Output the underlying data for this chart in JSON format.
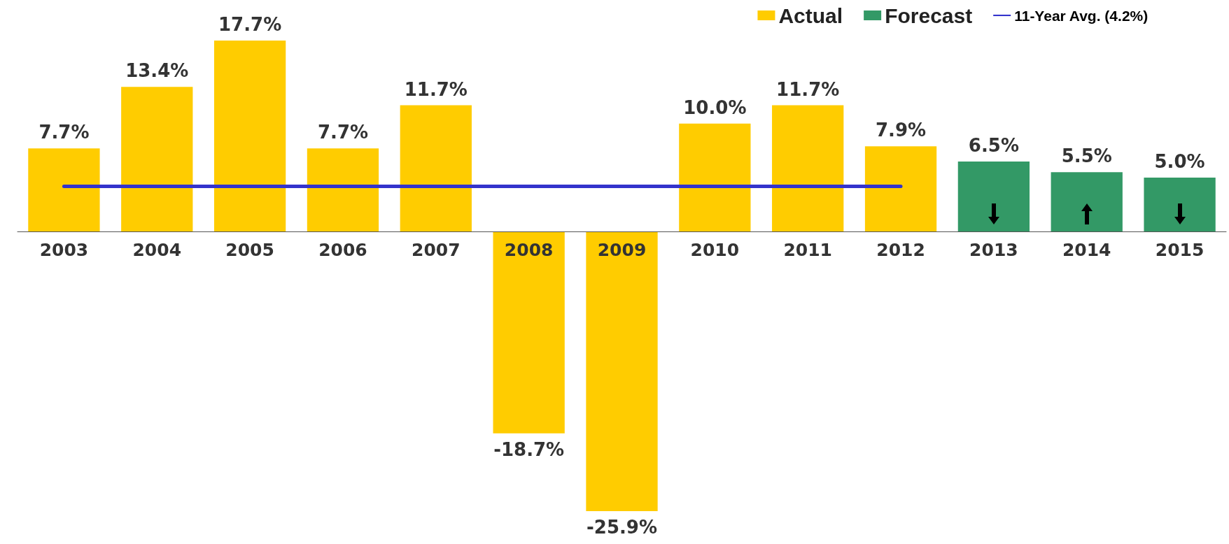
{
  "chart_data": {
    "type": "bar",
    "categories": [
      "2003",
      "2004",
      "2005",
      "2006",
      "2007",
      "2008",
      "2009",
      "2010",
      "2011",
      "2012",
      "2013",
      "2014",
      "2015"
    ],
    "series": [
      {
        "name": "Actual",
        "color": "#ffcc00",
        "values": [
          7.7,
          13.4,
          17.7,
          7.7,
          11.7,
          -18.7,
          -25.9,
          10.0,
          11.7,
          7.9,
          null,
          null,
          null
        ],
        "value_labels": [
          "7.7%",
          "13.4%",
          "17.7%",
          "7.7%",
          "11.7%",
          "-18.7%",
          "-25.9%",
          "10.0%",
          "11.7%",
          "7.9%",
          null,
          null,
          null
        ]
      },
      {
        "name": "Forecast",
        "color": "#339966",
        "values": [
          null,
          null,
          null,
          null,
          null,
          null,
          null,
          null,
          null,
          null,
          6.5,
          5.5,
          5.0
        ],
        "value_labels": [
          null,
          null,
          null,
          null,
          null,
          null,
          null,
          null,
          null,
          null,
          "6.5%",
          "5.5%",
          "5.0%"
        ]
      },
      {
        "name": "11-Year Avg. (4.2%)",
        "type": "line",
        "color": "#3333cc",
        "values": [
          4.2,
          4.2,
          4.2,
          4.2,
          4.2,
          4.2,
          4.2,
          4.2,
          4.2,
          4.2,
          null,
          null,
          null
        ]
      }
    ],
    "legend": "top right",
    "grid": false,
    "marker": "none",
    "line_style": "solid",
    "tick_labels": "x"
  }
}
